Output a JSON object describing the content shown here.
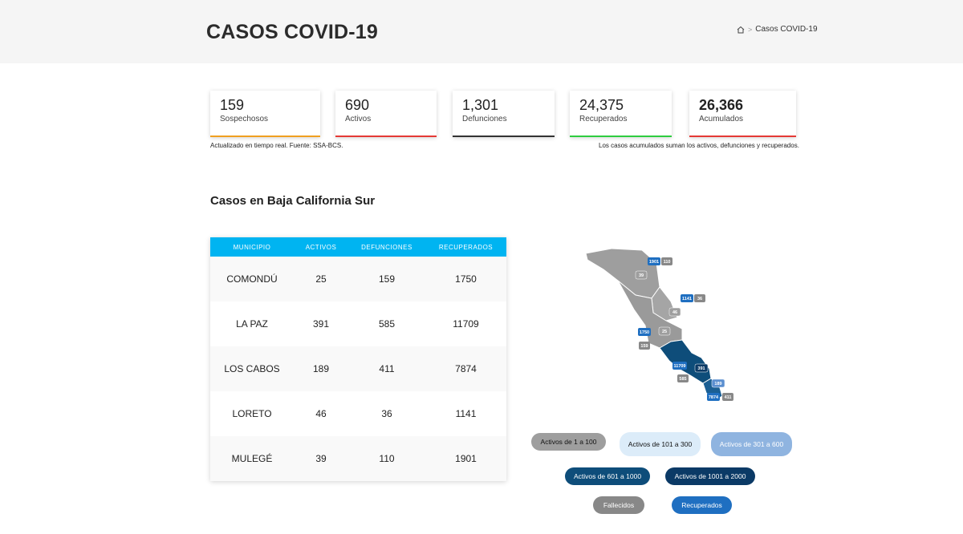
{
  "header": {
    "title": "CASOS COVID-19",
    "breadcrumb_current": "Casos COVID-19",
    "breadcrumb_separator": ">"
  },
  "stats": [
    {
      "value": "159",
      "label": "Sospechosos",
      "color": "#f0a020"
    },
    {
      "value": "690",
      "label": "Activos",
      "color": "#e53935"
    },
    {
      "value": "1,301",
      "label": "Defunciones",
      "color": "#333333"
    },
    {
      "value": "24,375",
      "label": "Recuperados",
      "color": "#2ecc40"
    },
    {
      "value": "26,366",
      "label": "Acumulados",
      "color": "#e53935"
    }
  ],
  "notes": {
    "left": "Actualizado en tiempo real. Fuente: SSA-BCS.",
    "right": "Los casos acumulados suman los activos, defunciones y recuperados."
  },
  "section_title": "Casos en Baja California Sur",
  "table": {
    "headers": [
      "MUNICIPIO",
      "ACTIVOS",
      "DEFUNCIONES",
      "RECUPERADOS"
    ],
    "rows": [
      [
        "COMONDÚ",
        "25",
        "159",
        "1750"
      ],
      [
        "LA PAZ",
        "391",
        "585",
        "11709"
      ],
      [
        "LOS CABOS",
        "189",
        "411",
        "7874"
      ],
      [
        "LORETO",
        "46",
        "36",
        "1141"
      ],
      [
        "MULEGÉ",
        "39",
        "110",
        "1901"
      ]
    ]
  },
  "map_labels": {
    "mulege_recuperados": "1901",
    "mulege_fallecidos": "110",
    "mulege_activos": "39",
    "loreto_recuperados": "1141",
    "loreto_fallecidos": "36",
    "loreto_activos": "46",
    "comondu_recuperados": "1750",
    "comondu_fallecidos": "159",
    "comondu_activos": "25",
    "lapaz_recuperados": "11709",
    "lapaz_fallecidos": "585",
    "lapaz_activos": "391",
    "loscabos_recuperados": "7874",
    "loscabos_fallecidos": "411",
    "loscabos_activos": "189"
  },
  "legend": {
    "range1": "Activos de 1 a 100",
    "range2": "Activos de 101 a 300",
    "range3": "Activos de 301 a 600",
    "range4": "Activos de 601 a 1000",
    "range5": "Activos de 1001 a 2000",
    "fallecidos": "Fallecidos",
    "recuperados": "Recuperados"
  },
  "colors": {
    "table_header": "#00b4f1",
    "range1": "#9e9e9e",
    "range2": "#dcecf9",
    "range3": "#8fb4e0",
    "range4": "#0e4d7a",
    "range5": "#0b3a66",
    "fallecidos": "#888888",
    "recuperados": "#1f6fc1"
  }
}
